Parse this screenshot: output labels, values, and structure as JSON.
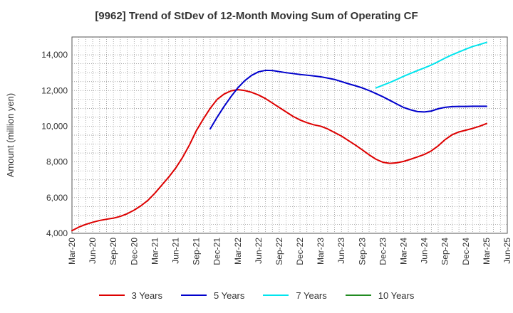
{
  "chart_data": {
    "type": "line",
    "title": "[9962]  Trend of StDev of 12-Month Moving Sum of Operating CF",
    "ylabel": "Amount (million yen)",
    "xlabel": "",
    "ylim": [
      4000,
      15000
    ],
    "yticks": [
      4000,
      6000,
      8000,
      10000,
      12000,
      14000
    ],
    "ytick_labels": [
      "4,000",
      "6,000",
      "8,000",
      "10,000",
      "12,000",
      "14,000"
    ],
    "xtick_labels": [
      "Mar-20",
      "Jun-20",
      "Sep-20",
      "Dec-20",
      "Mar-21",
      "Jun-21",
      "Sep-21",
      "Dec-21",
      "Mar-22",
      "Jun-22",
      "Sep-22",
      "Dec-22",
      "Mar-23",
      "Jun-23",
      "Sep-23",
      "Dec-23",
      "Mar-24",
      "Jun-24",
      "Sep-24",
      "Dec-24",
      "Mar-25",
      "Jun-25"
    ],
    "grid": true,
    "legend_position": "bottom",
    "series": [
      {
        "name": "3 Years",
        "color": "#dd0000",
        "x": [
          "Mar-20",
          "Apr-20",
          "May-20",
          "Jun-20",
          "Jul-20",
          "Aug-20",
          "Sep-20",
          "Oct-20",
          "Nov-20",
          "Dec-20",
          "Jan-21",
          "Feb-21",
          "Mar-21",
          "Apr-21",
          "May-21",
          "Jun-21",
          "Jul-21",
          "Aug-21",
          "Sep-21",
          "Oct-21",
          "Nov-21",
          "Dec-21",
          "Jan-22",
          "Feb-22",
          "Mar-22",
          "Apr-22",
          "May-22",
          "Jun-22",
          "Jul-22",
          "Aug-22",
          "Sep-22",
          "Oct-22",
          "Nov-22",
          "Dec-22",
          "Jan-23",
          "Feb-23",
          "Mar-23",
          "Apr-23",
          "May-23",
          "Jun-23",
          "Jul-23",
          "Aug-23",
          "Sep-23",
          "Oct-23",
          "Nov-23",
          "Dec-23",
          "Jan-24",
          "Feb-24",
          "Mar-24",
          "Apr-24",
          "May-24",
          "Jun-24",
          "Jul-24",
          "Aug-24",
          "Sep-24",
          "Oct-24",
          "Nov-24",
          "Dec-24",
          "Jan-25",
          "Feb-25",
          "Mar-25"
        ],
        "values": [
          4150,
          4350,
          4500,
          4620,
          4720,
          4790,
          4850,
          4950,
          5100,
          5300,
          5550,
          5850,
          6250,
          6700,
          7150,
          7650,
          8250,
          8950,
          9750,
          10400,
          11000,
          11500,
          11800,
          11980,
          12050,
          12000,
          11900,
          11750,
          11550,
          11300,
          11050,
          10800,
          10550,
          10350,
          10200,
          10080,
          10000,
          9850,
          9650,
          9450,
          9200,
          8950,
          8680,
          8400,
          8150,
          7980,
          7920,
          7950,
          8030,
          8150,
          8280,
          8420,
          8620,
          8900,
          9250,
          9520,
          9680,
          9780,
          9880,
          10000,
          10150
        ]
      },
      {
        "name": "5 Years",
        "color": "#0000cc",
        "x": [
          "Nov-21",
          "Dec-21",
          "Jan-22",
          "Feb-22",
          "Mar-22",
          "Apr-22",
          "May-22",
          "Jun-22",
          "Jul-22",
          "Aug-22",
          "Sep-22",
          "Oct-22",
          "Nov-22",
          "Dec-22",
          "Jan-23",
          "Feb-23",
          "Mar-23",
          "Apr-23",
          "May-23",
          "Jun-23",
          "Jul-23",
          "Aug-23",
          "Sep-23",
          "Oct-23",
          "Nov-23",
          "Dec-23",
          "Jan-24",
          "Feb-24",
          "Mar-24",
          "Apr-24",
          "May-24",
          "Jun-24",
          "Jul-24",
          "Aug-24",
          "Sep-24",
          "Oct-24",
          "Nov-24",
          "Dec-24",
          "Jan-25",
          "Feb-25",
          "Mar-25"
        ],
        "values": [
          9850,
          10500,
          11100,
          11650,
          12150,
          12550,
          12850,
          13050,
          13130,
          13120,
          13060,
          13000,
          12950,
          12900,
          12860,
          12820,
          12770,
          12700,
          12620,
          12500,
          12380,
          12270,
          12150,
          12000,
          11830,
          11650,
          11450,
          11250,
          11050,
          10920,
          10820,
          10800,
          10850,
          10980,
          11060,
          11100,
          11110,
          11110,
          11120,
          11120,
          11120
        ]
      },
      {
        "name": "7 Years",
        "color": "#00e5ee",
        "x": [
          "Nov-23",
          "Dec-23",
          "Jan-24",
          "Feb-24",
          "Mar-24",
          "Apr-24",
          "May-24",
          "Jun-24",
          "Jul-24",
          "Aug-24",
          "Sep-24",
          "Oct-24",
          "Nov-24",
          "Dec-24",
          "Jan-25",
          "Feb-25",
          "Mar-25"
        ],
        "values": [
          12150,
          12300,
          12450,
          12620,
          12800,
          12960,
          13120,
          13270,
          13430,
          13620,
          13820,
          14000,
          14160,
          14320,
          14470,
          14580,
          14700
        ]
      },
      {
        "name": "10 Years",
        "color": "#228b22",
        "x": [],
        "values": []
      }
    ]
  }
}
